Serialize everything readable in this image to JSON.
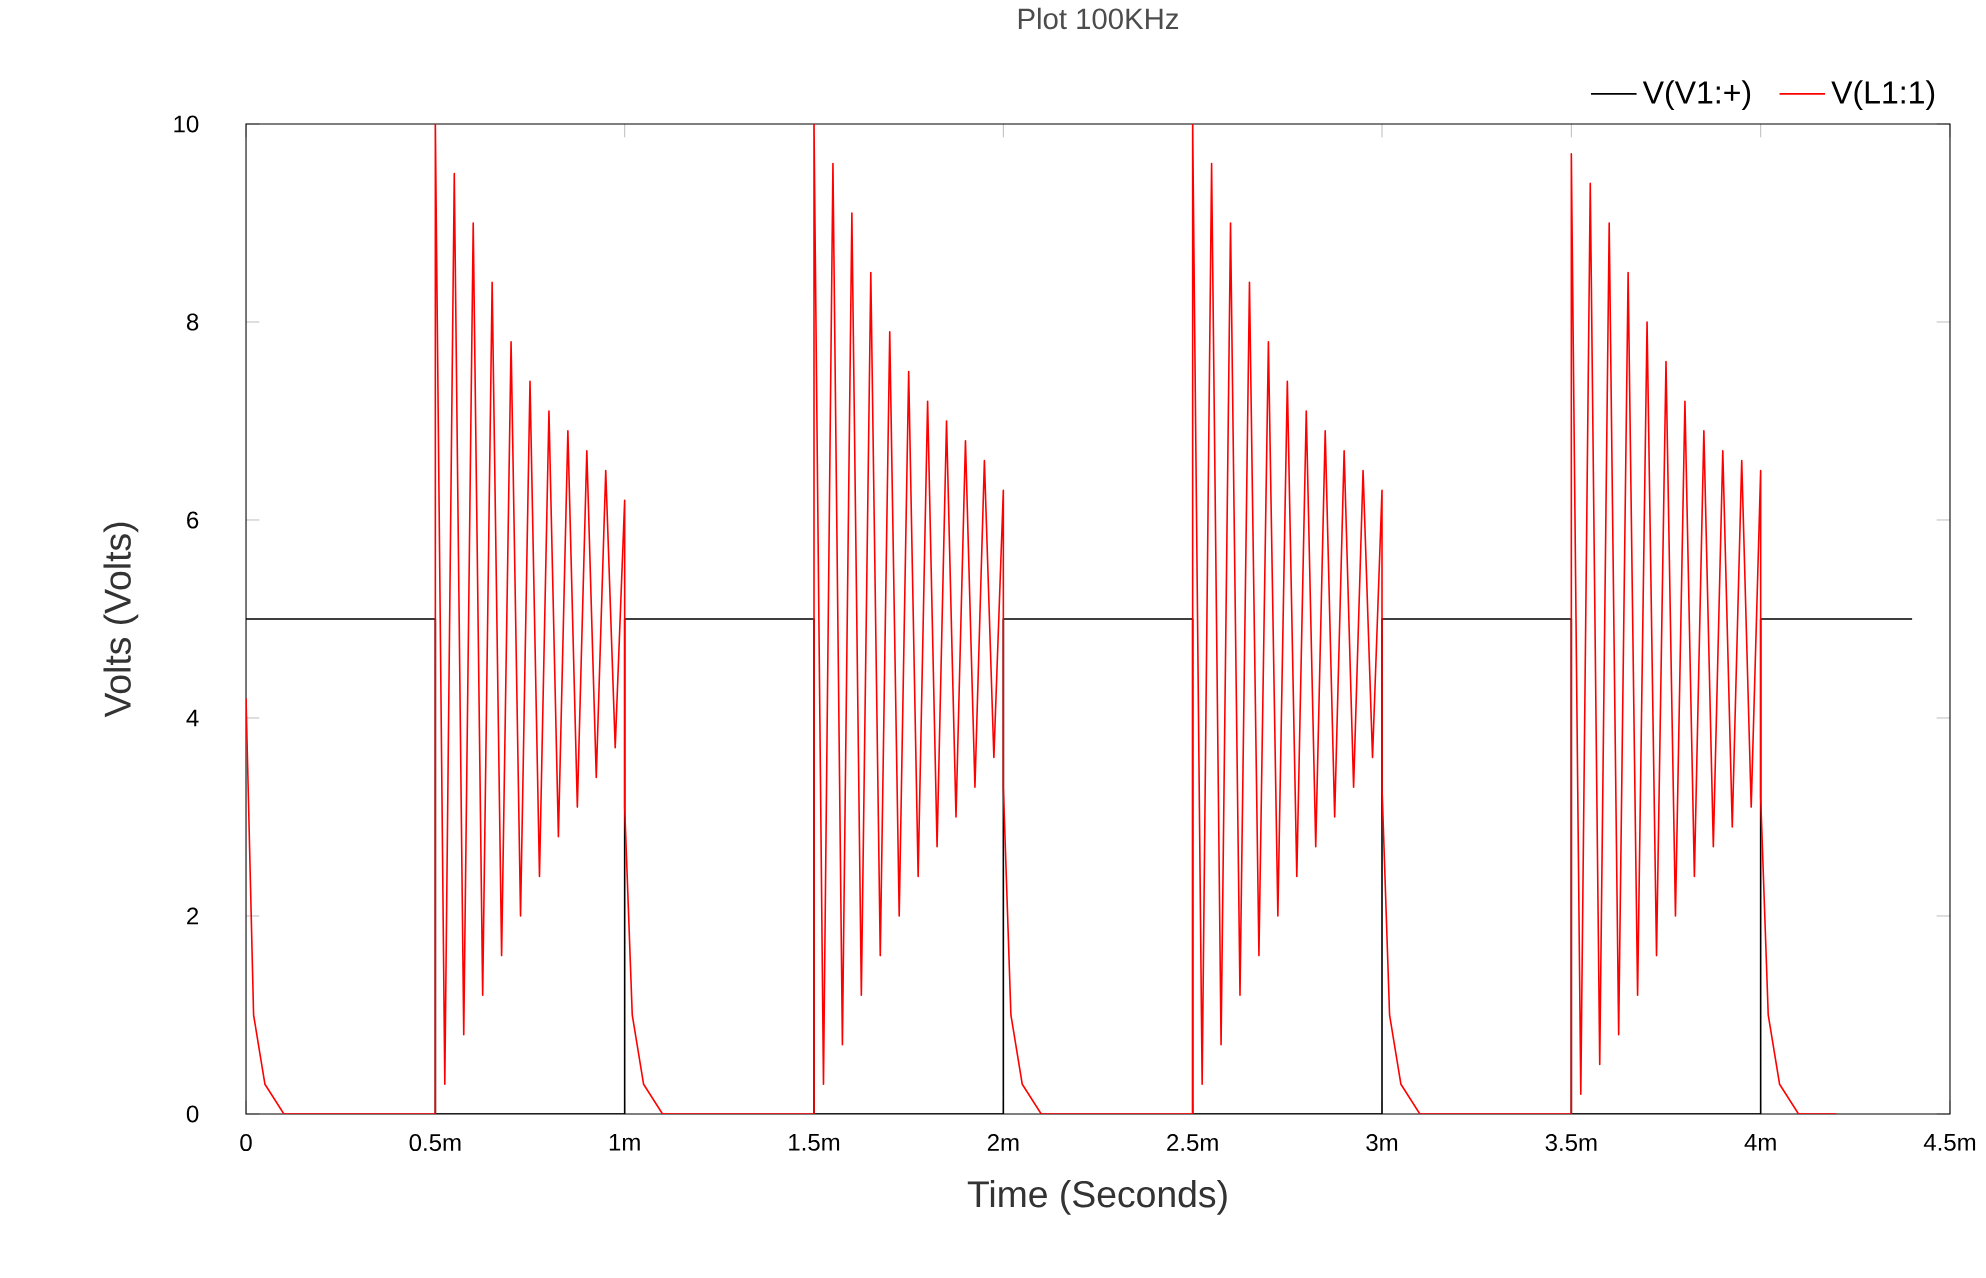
{
  "chart_data": {
    "type": "line",
    "title": "Plot 100KHz",
    "xlabel": "Time (Seconds)",
    "ylabel": "Volts (Volts)",
    "xlim": [
      0,
      4.5
    ],
    "ylim": [
      0,
      10
    ],
    "xticks": [
      0,
      {
        "value": 0.5,
        "label": "0.5m"
      },
      {
        "value": 1,
        "label": "1m"
      },
      {
        "value": 1.5,
        "label": "1.5m"
      },
      {
        "value": 2,
        "label": "2m"
      },
      {
        "value": 2.5,
        "label": "2.5m"
      },
      {
        "value": 3,
        "label": "3m"
      },
      {
        "value": 3.5,
        "label": "3.5m"
      },
      {
        "value": 4,
        "label": "4m"
      },
      {
        "value": 4.5,
        "label": "4.5m"
      }
    ],
    "yticks": [
      0,
      2,
      4,
      6,
      8,
      10
    ],
    "grid": false,
    "legend": "top right",
    "line_style": "solid",
    "series": [
      {
        "name": "V(V1:+)",
        "color": "#000000",
        "x": [
          0,
          0.5,
          0.5,
          1,
          1,
          1.5,
          1.5,
          2,
          2,
          2.5,
          2.5,
          3,
          3,
          3.5,
          3.5,
          4,
          4,
          4.4
        ],
        "values": [
          5,
          5,
          0,
          0,
          5,
          5,
          0,
          0,
          5,
          5,
          0,
          0,
          5,
          5,
          0,
          0,
          5,
          5
        ]
      },
      {
        "name": "V(L1:1)",
        "color": "#ff0000",
        "x": [
          0,
          0.02,
          0.05,
          0.1,
          0.5,
          0.5,
          0.525,
          0.55,
          0.575,
          0.6,
          0.625,
          0.65,
          0.675,
          0.7,
          0.725,
          0.75,
          0.775,
          0.8,
          0.825,
          0.85,
          0.875,
          0.9,
          0.925,
          0.95,
          0.975,
          1,
          1,
          1.02,
          1.05,
          1.1,
          1.5,
          1.5,
          1.525,
          1.55,
          1.575,
          1.6,
          1.625,
          1.65,
          1.675,
          1.7,
          1.725,
          1.75,
          1.775,
          1.8,
          1.825,
          1.85,
          1.875,
          1.9,
          1.925,
          1.95,
          1.975,
          2,
          2,
          2.02,
          2.05,
          2.1,
          2.5,
          2.5,
          2.525,
          2.55,
          2.575,
          2.6,
          2.625,
          2.65,
          2.675,
          2.7,
          2.725,
          2.75,
          2.775,
          2.8,
          2.825,
          2.85,
          2.875,
          2.9,
          2.925,
          2.95,
          2.975,
          3,
          3,
          3.02,
          3.05,
          3.1,
          3.5,
          3.5,
          3.525,
          3.55,
          3.575,
          3.6,
          3.625,
          3.65,
          3.675,
          3.7,
          3.725,
          3.75,
          3.775,
          3.8,
          3.825,
          3.85,
          3.875,
          3.9,
          3.925,
          3.95,
          3.975,
          4,
          4,
          4.02,
          4.05,
          4.1,
          4.2
        ],
        "values": [
          4.2,
          1.0,
          0.3,
          0,
          0,
          10,
          0.3,
          9.5,
          0.8,
          9.0,
          1.2,
          8.4,
          1.6,
          7.8,
          2.0,
          7.4,
          2.4,
          7.1,
          2.8,
          6.9,
          3.1,
          6.7,
          3.4,
          6.5,
          3.7,
          6.2,
          3.1,
          1.0,
          0.3,
          0,
          0,
          10,
          0.3,
          9.6,
          0.7,
          9.1,
          1.2,
          8.5,
          1.6,
          7.9,
          2.0,
          7.5,
          2.4,
          7.2,
          2.7,
          7.0,
          3.0,
          6.8,
          3.3,
          6.6,
          3.6,
          6.3,
          3.3,
          1.0,
          0.3,
          0,
          0,
          10,
          0.3,
          9.6,
          0.7,
          9.0,
          1.2,
          8.4,
          1.6,
          7.8,
          2.0,
          7.4,
          2.4,
          7.1,
          2.7,
          6.9,
          3.0,
          6.7,
          3.3,
          6.5,
          3.6,
          6.3,
          3.3,
          1.0,
          0.3,
          0,
          0,
          9.7,
          0.2,
          9.4,
          0.5,
          9.0,
          0.8,
          8.5,
          1.2,
          8.0,
          1.6,
          7.6,
          2.0,
          7.2,
          2.4,
          6.9,
          2.7,
          6.7,
          2.9,
          6.6,
          3.1,
          6.5,
          3.2,
          1.0,
          0.3,
          0,
          0
        ]
      }
    ]
  }
}
